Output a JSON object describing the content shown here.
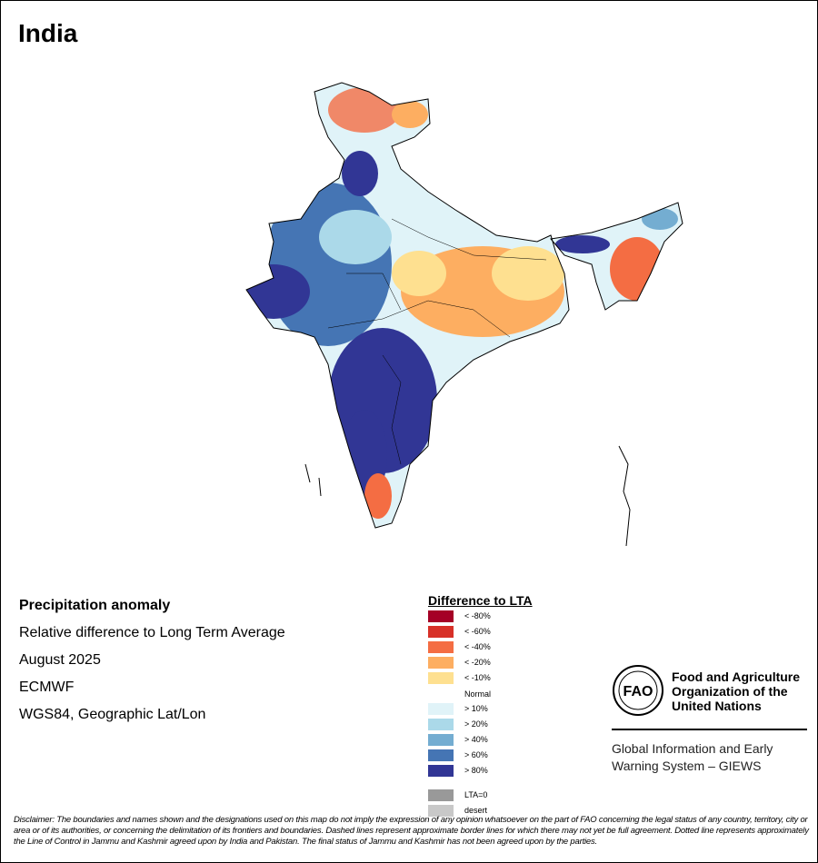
{
  "title": "India",
  "info": {
    "variable": "Precipitation anomaly",
    "description": "Relative difference to Long Term Average",
    "period": "August 2025",
    "source": "ECMWF",
    "projection": "WGS84, Geographic Lat/Lon"
  },
  "legend": {
    "title": "Difference to LTA",
    "items": [
      {
        "label": "< -80%",
        "color": "#a50026"
      },
      {
        "label": "< -60%",
        "color": "#d73027"
      },
      {
        "label": "< -40%",
        "color": "#f46d43"
      },
      {
        "label": "< -20%",
        "color": "#fdae61"
      },
      {
        "label": "< -10%",
        "color": "#fee090"
      },
      {
        "label": "Normal",
        "color": "#ffffff"
      },
      {
        "label": "> 10%",
        "color": "#e0f3f8"
      },
      {
        "label": "> 20%",
        "color": "#abd9e9"
      },
      {
        "label": "> 40%",
        "color": "#74add1"
      },
      {
        "label": "> 60%",
        "color": "#4575b4"
      },
      {
        "label": "> 80%",
        "color": "#313695"
      },
      {
        "label": "LTA=0",
        "color": "#999999"
      },
      {
        "label": "desert",
        "color": "#c8c8c8"
      }
    ]
  },
  "logo": {
    "text": "FAO",
    "org_line1": "Food and Agriculture",
    "org_line2": "Organization of the",
    "org_line3": "United Nations",
    "giews_line1": "Global Information and Early",
    "giews_line2": "Warning System – GIEWS"
  },
  "disclaimer": "Disclaimer: The boundaries and names shown and the designations used on this map do not imply the expression of any opinion whatsoever on the part of FAO concerning the legal status of any country, territory, city or area or of its authorities, or concerning the delimitation of its frontiers and boundaries. Dashed lines represent approximate border lines for which there may not yet be full agreement. Dotted line represents approximately the Line of Control in Jammu and Kashmir agreed upon by India and Pakistan. The final status of Jammu and Kashmir has not been agreed upon by the parties."
}
